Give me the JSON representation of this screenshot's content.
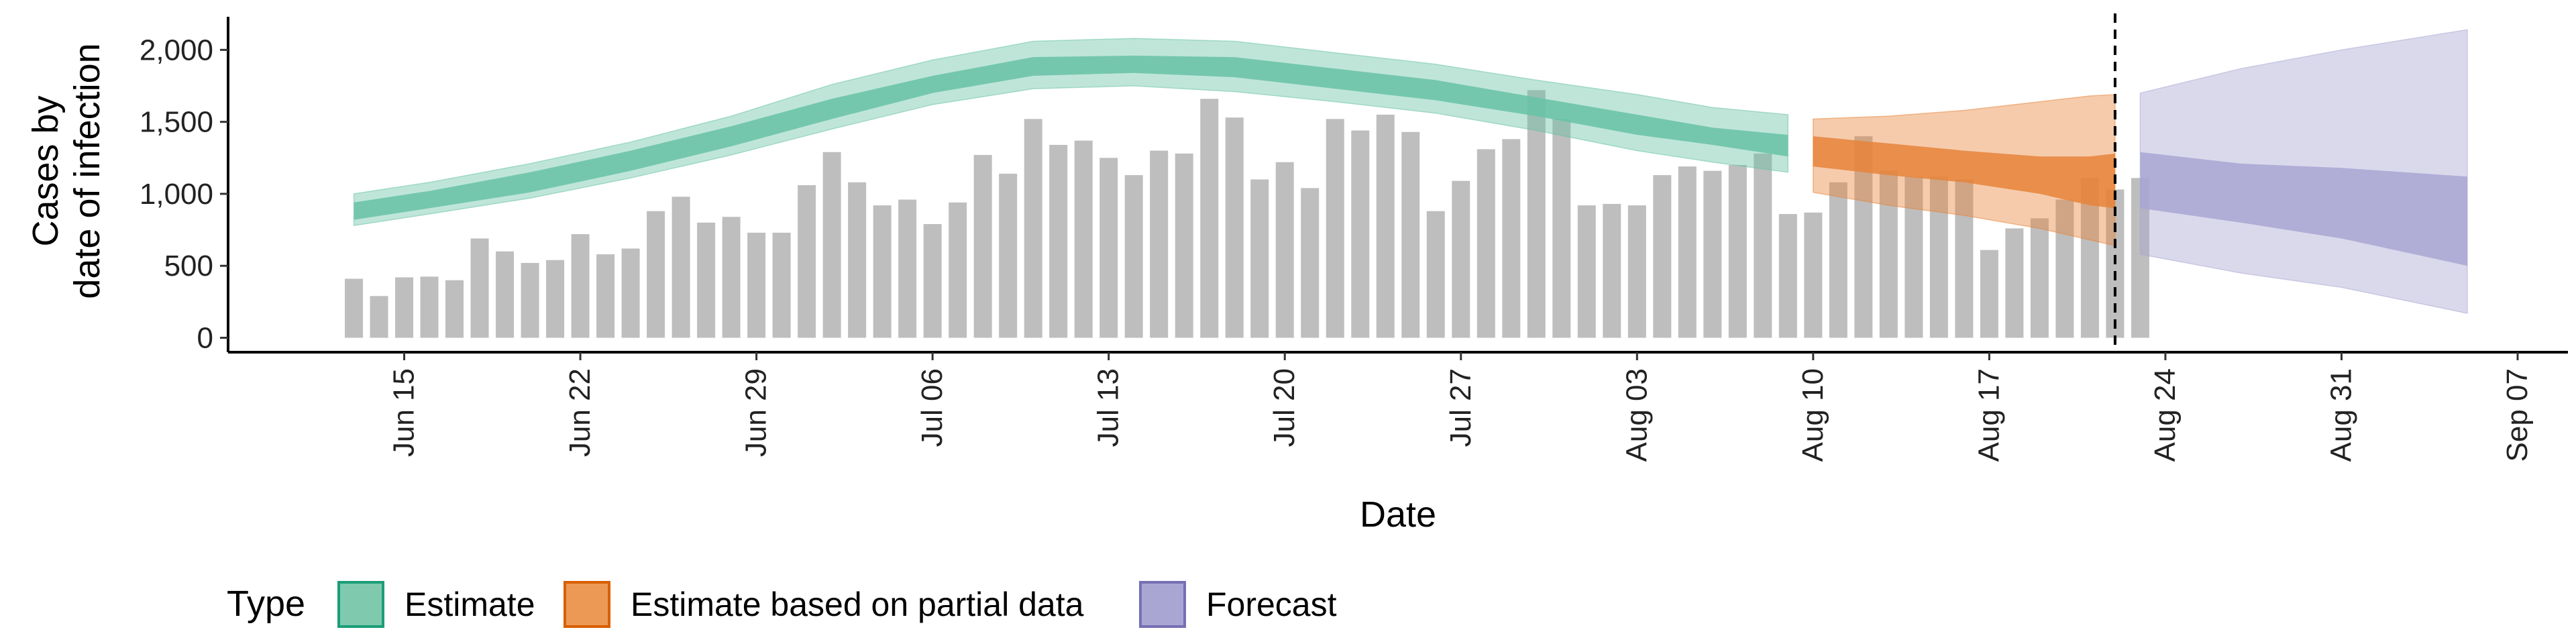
{
  "chart_data": {
    "type": "bar",
    "ylabel_line1": "Cases by",
    "ylabel_line2": "date of infection",
    "xlabel": "Date",
    "ylim": [
      -100,
      2230
    ],
    "xlim": [
      "2020-06-08",
      "2020-09-09"
    ],
    "y_ticks": [
      0,
      500,
      1000,
      1500,
      2000
    ],
    "y_tick_labels": [
      "0",
      "500",
      "1,000",
      "1,500",
      "2,000"
    ],
    "x_ticks": [
      "2020-06-15",
      "2020-06-22",
      "2020-06-29",
      "2020-07-06",
      "2020-07-13",
      "2020-07-20",
      "2020-07-27",
      "2020-08-03",
      "2020-08-10",
      "2020-08-17",
      "2020-08-24",
      "2020-08-31",
      "2020-09-07"
    ],
    "x_tick_labels": [
      "Jun 15",
      "Jun 22",
      "Jun 29",
      "Jul 06",
      "Jul 13",
      "Jul 20",
      "Jul 27",
      "Aug 03",
      "Aug 10",
      "Aug 17",
      "Aug 24",
      "Aug 31",
      "Sep 07"
    ],
    "grid": false,
    "vline_date": "2020-08-22",
    "bars": {
      "start_date": "2020-06-13",
      "color": "#bebebe",
      "values": [
        410,
        290,
        420,
        425,
        400,
        690,
        600,
        520,
        540,
        720,
        580,
        620,
        880,
        980,
        800,
        840,
        730,
        730,
        1060,
        1290,
        1080,
        920,
        960,
        790,
        940,
        1270,
        1140,
        1520,
        1340,
        1370,
        1250,
        1130,
        1300,
        1280,
        1660,
        1530,
        1100,
        1220,
        1040,
        1520,
        1440,
        1550,
        1430,
        880,
        1090,
        1310,
        1380,
        1720,
        1520,
        920,
        930,
        920,
        1130,
        1190,
        1160,
        1200,
        1280,
        860,
        870,
        1080,
        1400,
        1160,
        1120,
        1120,
        1100,
        610,
        760,
        830,
        960,
        1110,
        1030,
        1110
      ]
    },
    "series": [
      {
        "name": "Estimate",
        "color": "#1b9e77",
        "fill": "#66c2a5",
        "legend_fill": "#7fc9ae",
        "x": [
          "2020-06-13",
          "2020-06-16",
          "2020-06-20",
          "2020-06-24",
          "2020-06-28",
          "2020-07-02",
          "2020-07-06",
          "2020-07-10",
          "2020-07-14",
          "2020-07-18",
          "2020-07-22",
          "2020-07-26",
          "2020-07-30",
          "2020-08-03",
          "2020-08-06",
          "2020-08-09"
        ],
        "median": [
          880,
          960,
          1080,
          1230,
          1400,
          1590,
          1780,
          1880,
          1900,
          1880,
          1800,
          1720,
          1600,
          1480,
          1400,
          1340
        ],
        "inner": [
          [
            820,
            940
          ],
          [
            900,
            1020
          ],
          [
            1010,
            1150
          ],
          [
            1160,
            1300
          ],
          [
            1330,
            1470
          ],
          [
            1520,
            1660
          ],
          [
            1700,
            1820
          ],
          [
            1820,
            1950
          ],
          [
            1840,
            1960
          ],
          [
            1810,
            1950
          ],
          [
            1730,
            1870
          ],
          [
            1650,
            1790
          ],
          [
            1540,
            1670
          ],
          [
            1410,
            1550
          ],
          [
            1340,
            1460
          ],
          [
            1260,
            1410
          ]
        ],
        "outer": [
          [
            780,
            1000
          ],
          [
            860,
            1080
          ],
          [
            970,
            1210
          ],
          [
            1110,
            1360
          ],
          [
            1270,
            1540
          ],
          [
            1450,
            1760
          ],
          [
            1620,
            1930
          ],
          [
            1730,
            2060
          ],
          [
            1750,
            2080
          ],
          [
            1710,
            2060
          ],
          [
            1640,
            1980
          ],
          [
            1560,
            1900
          ],
          [
            1440,
            1790
          ],
          [
            1300,
            1690
          ],
          [
            1220,
            1600
          ],
          [
            1150,
            1550
          ]
        ]
      },
      {
        "name": "Estimate based on partial data",
        "color": "#d95f02",
        "fill": "#e6843a",
        "legend_fill": "#ec9955",
        "x": [
          "2020-08-10",
          "2020-08-13",
          "2020-08-16",
          "2020-08-19",
          "2020-08-21",
          "2020-08-22"
        ],
        "median": [
          1310,
          1250,
          1200,
          1120,
          1080,
          1060
        ],
        "inner": [
          [
            1190,
            1400
          ],
          [
            1130,
            1350
          ],
          [
            1080,
            1300
          ],
          [
            1000,
            1260
          ],
          [
            920,
            1260
          ],
          [
            900,
            1280
          ]
        ],
        "outer": [
          [
            1010,
            1520
          ],
          [
            920,
            1540
          ],
          [
            850,
            1580
          ],
          [
            760,
            1640
          ],
          [
            680,
            1680
          ],
          [
            640,
            1690
          ]
        ]
      },
      {
        "name": "Forecast",
        "color": "#7570b3",
        "fill": "#a8a5d2",
        "legend_fill": "#aaa6d4",
        "x": [
          "2020-08-23",
          "2020-08-27",
          "2020-08-31",
          "2020-09-05"
        ],
        "median": [
          1080,
          1000,
          920,
          820
        ],
        "inner": [
          [
            900,
            1290
          ],
          [
            800,
            1210
          ],
          [
            690,
            1180
          ],
          [
            500,
            1120
          ]
        ],
        "outer": [
          [
            580,
            1700
          ],
          [
            450,
            1870
          ],
          [
            350,
            2000
          ],
          [
            170,
            2140
          ]
        ]
      }
    ],
    "legend": {
      "title": "Type",
      "position": "bottom"
    }
  }
}
